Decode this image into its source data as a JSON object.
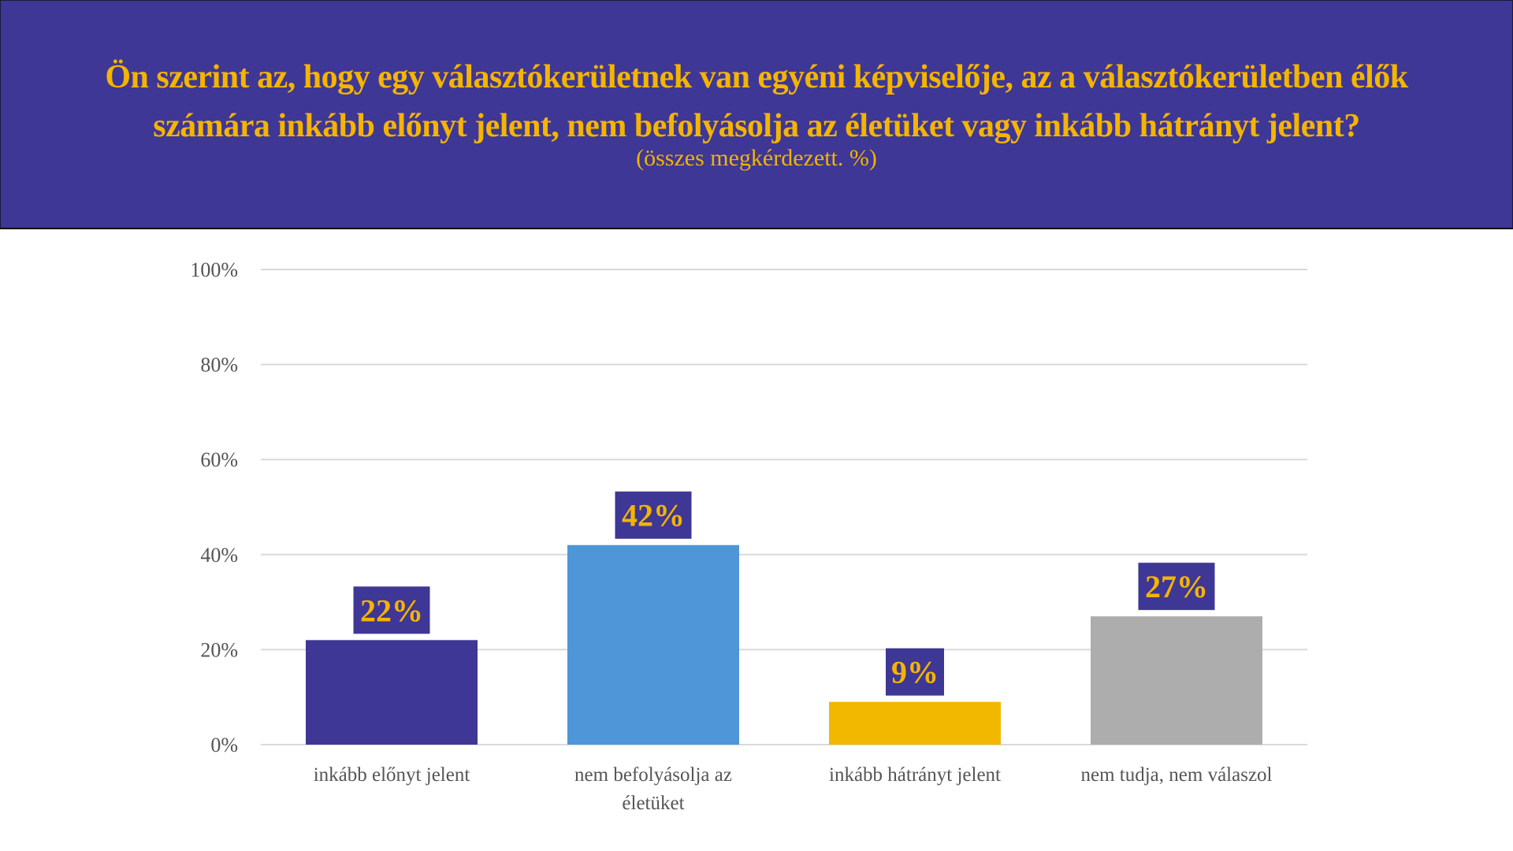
{
  "header": {
    "title_line1": "Ön szerint az, hogy egy választókerületnek van egyéni képviselője, az a választókerületben élők",
    "title_line2": "számára inkább előnyt jelent, nem befolyásolja az életüket vagy inkább hátrányt jelent?",
    "subtitle": "(összes megkérdezett. %)"
  },
  "chart_data": {
    "type": "bar",
    "title": "Ön szerint az, hogy egy választókerületnek van egyéni képviselője, az a választókerületben élők számára inkább előnyt jelent, nem befolyásolja az életüket vagy inkább hátrányt jelent?",
    "subtitle": "(összes megkérdezett. %)",
    "categories": [
      [
        "inkább előnyt jelent"
      ],
      [
        "nem befolyásolja az",
        "életüket"
      ],
      [
        "inkább hátrányt jelent"
      ],
      [
        "nem tudja, nem válaszol"
      ]
    ],
    "values": [
      22,
      42,
      9,
      27
    ],
    "data_labels": [
      "22%",
      "42%",
      "9%",
      "27%"
    ],
    "colors": [
      "#3e3795",
      "#4f96d8",
      "#f2b800",
      "#adadad"
    ],
    "label_box_color": "#3e3795",
    "label_text_color": "#f4b400",
    "ylim": [
      0,
      100
    ],
    "yticks": [
      0,
      20,
      40,
      60,
      80,
      100
    ],
    "ytick_labels": [
      "0%",
      "20%",
      "40%",
      "60%",
      "80%",
      "100%"
    ],
    "grid": true,
    "xlabel": "",
    "ylabel": ""
  }
}
